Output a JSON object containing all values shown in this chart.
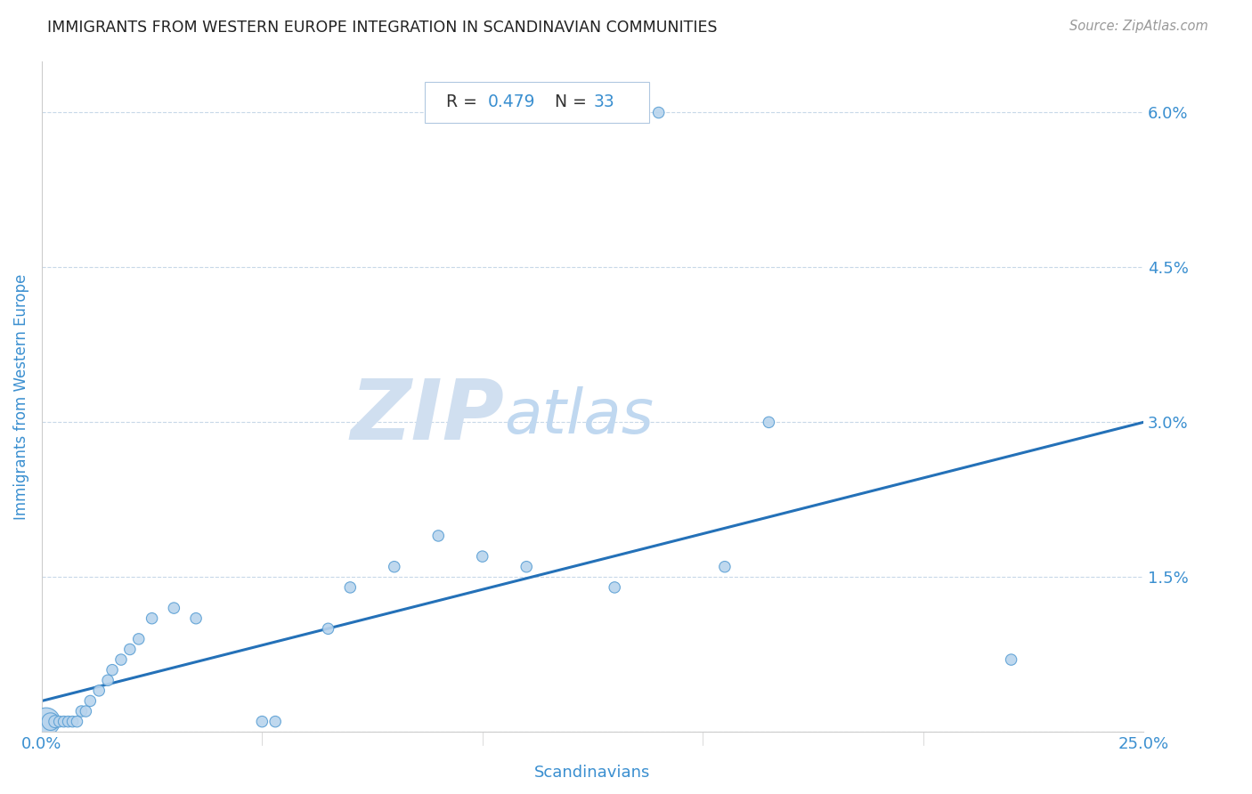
{
  "title": "IMMIGRANTS FROM WESTERN EUROPE INTEGRATION IN SCANDINAVIAN COMMUNITIES",
  "source": "Source: ZipAtlas.com",
  "xlabel": "Scandinavians",
  "ylabel": "Immigrants from Western Europe",
  "R": 0.479,
  "N": 33,
  "xlim": [
    0.0,
    0.25
  ],
  "ylim": [
    0.0,
    0.065
  ],
  "xticks": [
    0.0,
    0.05,
    0.1,
    0.15,
    0.2,
    0.25
  ],
  "xtick_labels": [
    "0.0%",
    "",
    "",
    "",
    "",
    "25.0%"
  ],
  "yticks": [
    0.0,
    0.015,
    0.03,
    0.045,
    0.06
  ],
  "ytick_labels": [
    "",
    "1.5%",
    "3.0%",
    "4.5%",
    "6.0%"
  ],
  "scatter_x": [
    0.001,
    0.002,
    0.003,
    0.004,
    0.005,
    0.006,
    0.007,
    0.008,
    0.009,
    0.01,
    0.011,
    0.013,
    0.015,
    0.016,
    0.018,
    0.02,
    0.022,
    0.025,
    0.03,
    0.035,
    0.05,
    0.053,
    0.065,
    0.07,
    0.08,
    0.09,
    0.1,
    0.11,
    0.13,
    0.14,
    0.155,
    0.165,
    0.22
  ],
  "scatter_y": [
    0.001,
    0.001,
    0.001,
    0.001,
    0.001,
    0.001,
    0.001,
    0.001,
    0.002,
    0.002,
    0.003,
    0.004,
    0.005,
    0.006,
    0.007,
    0.008,
    0.009,
    0.011,
    0.012,
    0.011,
    0.001,
    0.001,
    0.01,
    0.014,
    0.016,
    0.019,
    0.017,
    0.016,
    0.014,
    0.06,
    0.016,
    0.03,
    0.007
  ],
  "scatter_sizes": [
    500,
    200,
    100,
    80,
    80,
    80,
    80,
    80,
    80,
    80,
    80,
    80,
    80,
    80,
    80,
    80,
    80,
    80,
    80,
    80,
    80,
    80,
    80,
    80,
    80,
    80,
    80,
    80,
    80,
    80,
    80,
    80,
    80
  ],
  "dot_color": "#b8d4ed",
  "dot_edge_color": "#5a9fd4",
  "line_color": "#2471b8",
  "line_start_x": 0.0,
  "line_start_y": 0.003,
  "line_end_x": 0.25,
  "line_end_y": 0.03,
  "title_color": "#222222",
  "axis_label_color": "#3a8fd0",
  "tick_color": "#3a8fd0",
  "grid_color": "#c8d8e8",
  "R_color": "#3a8fd0",
  "N_color": "#3a8fd0",
  "watermark_zip": "ZIP",
  "watermark_atlas": "atlas",
  "watermark_color_zip": "#d0dff0",
  "watermark_color_atlas": "#c0d8f0"
}
